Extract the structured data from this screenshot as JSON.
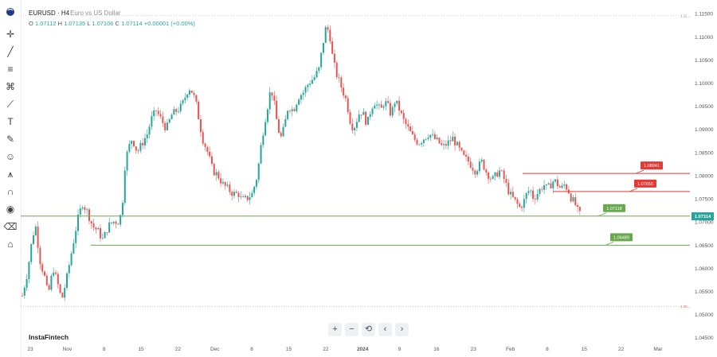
{
  "header": {
    "symbol": "EURUSD · H4",
    "description": "Euro vs US Dollar",
    "o_label": "O",
    "o_value": "1.07112",
    "h_label": "H",
    "h_value": "1.07135",
    "l_label": "L",
    "l_value": "1.07106",
    "c_label": "C",
    "c_value": "1.07114",
    "change": "+0.00001 (+0.00%)"
  },
  "brand": "InstaFintech",
  "toolbar": {
    "icons": [
      "logo-icon",
      "cursor-icon",
      "trend-line-icon",
      "fib-icon",
      "fork-icon",
      "pattern-icon",
      "measure-icon",
      "text-icon",
      "brush-icon",
      "emoji-icon",
      "ruler-icon",
      "magnet-icon",
      "lock-icon",
      "eye-icon",
      "trash-icon",
      "home-icon"
    ]
  },
  "navigation": {
    "zoom_in": "+",
    "zoom_out": "−",
    "reset": "⟲",
    "prev": "‹",
    "next": "›"
  },
  "colors": {
    "up": "#26a69a",
    "down": "#ef5350",
    "support": "#6aa84f",
    "resistance": "#e53935",
    "price": "#26a69a"
  },
  "chart_data": {
    "type": "candlestick",
    "instrument": "EURUSD",
    "timeframe": "H4",
    "ylim": [
      1.044,
      1.1165
    ],
    "y_ticks": [
      "1.04500",
      "1.05000",
      "1.05500",
      "1.06000",
      "1.06500",
      "1.07000",
      "1.07500",
      "1.08000",
      "1.08500",
      "1.09000",
      "1.09500",
      "1.10000",
      "1.10500",
      "1.11000",
      "1.11500"
    ],
    "x_ticks": [
      "23",
      "Nov",
      "8",
      "15",
      "22",
      "Dec",
      "8",
      "15",
      "22",
      "2024",
      "9",
      "16",
      "23",
      "Feb",
      "8",
      "15",
      "22",
      "Mar"
    ],
    "current_price": "1.07114",
    "high_marker": "1.11...",
    "low_marker": "1.05...",
    "levels": [
      {
        "label": "1.08041",
        "value": 1.08041,
        "type": "resistance"
      },
      {
        "label": "1.07650",
        "value": 1.0765,
        "type": "resistance"
      },
      {
        "label": "1.07118",
        "value": 1.07118,
        "type": "support"
      },
      {
        "label": "1.06489",
        "value": 1.06489,
        "type": "support"
      }
    ],
    "path": [
      [
        0,
        1.054
      ],
      [
        6,
        1.059
      ],
      [
        12,
        1.067
      ],
      [
        16,
        1.069
      ],
      [
        20,
        1.062
      ],
      [
        26,
        1.058
      ],
      [
        30,
        1.054
      ],
      [
        36,
        1.06
      ],
      [
        42,
        1.056
      ],
      [
        46,
        1.053
      ],
      [
        52,
        1.058
      ],
      [
        58,
        1.064
      ],
      [
        64,
        1.07
      ],
      [
        70,
        1.074
      ],
      [
        76,
        1.072
      ],
      [
        82,
        1.069
      ],
      [
        88,
        1.068
      ],
      [
        94,
        1.066
      ],
      [
        100,
        1.069
      ],
      [
        106,
        1.07
      ],
      [
        112,
        1.07
      ],
      [
        116,
        1.072
      ],
      [
        120,
        1.083
      ],
      [
        124,
        1.086
      ],
      [
        128,
        1.088
      ],
      [
        134,
        1.085
      ],
      [
        140,
        1.087
      ],
      [
        146,
        1.089
      ],
      [
        150,
        1.092
      ],
      [
        156,
        1.094
      ],
      [
        162,
        1.092
      ],
      [
        168,
        1.09
      ],
      [
        174,
        1.093
      ],
      [
        180,
        1.094
      ],
      [
        186,
        1.095
      ],
      [
        190,
        1.097
      ],
      [
        194,
        1.099
      ],
      [
        198,
        1.098
      ],
      [
        202,
        1.096
      ],
      [
        206,
        1.092
      ],
      [
        210,
        1.088
      ],
      [
        216,
        1.085
      ],
      [
        222,
        1.081
      ],
      [
        228,
        1.08
      ],
      [
        234,
        1.078
      ],
      [
        240,
        1.077
      ],
      [
        246,
        1.076
      ],
      [
        252,
        1.076
      ],
      [
        256,
        1.0745
      ],
      [
        262,
        1.075
      ],
      [
        268,
        1.076
      ],
      [
        274,
        1.08
      ],
      [
        278,
        1.086
      ],
      [
        282,
        1.091
      ],
      [
        286,
        1.095
      ],
      [
        290,
        1.099
      ],
      [
        294,
        1.095
      ],
      [
        298,
        1.09
      ],
      [
        302,
        1.088
      ],
      [
        306,
        1.091
      ],
      [
        310,
        1.095
      ],
      [
        316,
        1.094
      ],
      [
        322,
        1.097
      ],
      [
        328,
        1.098
      ],
      [
        334,
        1.1
      ],
      [
        340,
        1.101
      ],
      [
        346,
        1.103
      ],
      [
        350,
        1.108
      ],
      [
        354,
        1.112
      ],
      [
        358,
        1.111
      ],
      [
        362,
        1.105
      ],
      [
        366,
        1.102
      ],
      [
        370,
        1.1
      ],
      [
        374,
        1.098
      ],
      [
        378,
        1.096
      ],
      [
        382,
        1.092
      ],
      [
        386,
        1.09
      ],
      [
        390,
        1.092
      ],
      [
        394,
        1.094
      ],
      [
        398,
        1.093
      ],
      [
        402,
        1.091
      ],
      [
        406,
        1.094
      ],
      [
        410,
        1.096
      ],
      [
        414,
        1.095
      ],
      [
        418,
        1.094
      ],
      [
        422,
        1.096
      ],
      [
        426,
        1.095
      ],
      [
        430,
        1.093
      ],
      [
        434,
        1.096
      ],
      [
        438,
        1.095
      ],
      [
        444,
        1.092
      ],
      [
        450,
        1.09
      ],
      [
        456,
        1.088
      ],
      [
        462,
        1.087
      ],
      [
        468,
        1.088
      ],
      [
        474,
        1.089
      ],
      [
        480,
        1.088
      ],
      [
        486,
        1.087
      ],
      [
        490,
        1.086
      ],
      [
        496,
        1.087
      ],
      [
        502,
        1.088
      ],
      [
        508,
        1.086
      ],
      [
        514,
        1.084
      ],
      [
        520,
        1.083
      ],
      [
        524,
        1.082
      ],
      [
        528,
        1.081
      ],
      [
        532,
        1.082
      ],
      [
        536,
        1.083
      ],
      [
        540,
        1.081
      ],
      [
        544,
        1.08
      ],
      [
        548,
        1.079
      ],
      [
        552,
        1.08
      ],
      [
        556,
        1.081
      ],
      [
        560,
        1.08
      ],
      [
        564,
        1.078
      ],
      [
        568,
        1.076
      ],
      [
        572,
        1.075
      ],
      [
        576,
        1.074
      ],
      [
        580,
        1.073
      ],
      [
        584,
        1.074
      ],
      [
        588,
        1.076
      ],
      [
        592,
        1.077
      ],
      [
        596,
        1.075
      ],
      [
        600,
        1.076
      ],
      [
        604,
        1.077
      ],
      [
        608,
        1.078
      ],
      [
        612,
        1.077
      ],
      [
        616,
        1.078
      ],
      [
        620,
        1.079
      ],
      [
        624,
        1.078
      ],
      [
        628,
        1.077
      ],
      [
        632,
        1.078
      ],
      [
        636,
        1.077
      ],
      [
        640,
        1.075
      ],
      [
        644,
        1.074
      ],
      [
        648,
        1.072
      ],
      [
        652,
        1.0711
      ]
    ]
  }
}
